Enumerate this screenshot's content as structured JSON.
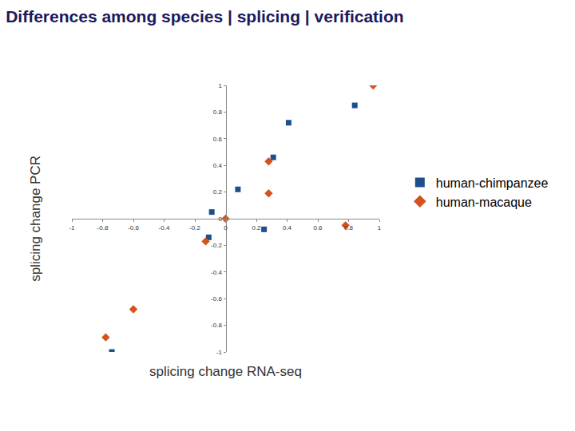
{
  "chart_data": {
    "type": "scatter",
    "title": "Differences among species | splicing | verification",
    "x_label": "splicing change RNA-seq",
    "y_label": "splicing change PCR",
    "xlim": [
      -1,
      1
    ],
    "ylim": [
      -1,
      1
    ],
    "xticks": [
      -1,
      -0.8,
      -0.6,
      -0.4,
      -0.2,
      0,
      0.2,
      0.4,
      0.6,
      0.8,
      1
    ],
    "yticks": [
      -1,
      -0.8,
      -0.6,
      -0.4,
      -0.2,
      0,
      0.2,
      0.4,
      0.6,
      0.8,
      1
    ],
    "grid": false,
    "legend": "right",
    "series": [
      {
        "name": "human-chimpanzee",
        "color": "#1f4e8c",
        "marker": "square",
        "x": [
          0.84,
          0.41,
          0.31,
          0.08,
          -0.09,
          -0.11,
          0.25,
          -0.74
        ],
        "values": [
          0.85,
          0.72,
          0.46,
          0.22,
          0.05,
          -0.14,
          -0.08,
          -1
        ]
      },
      {
        "name": "human-macaque",
        "color": "#d4521b",
        "marker": "diamond",
        "x": [
          0.96,
          0.28,
          0.28,
          0,
          -0.13,
          0.78,
          -0.6,
          -0.78
        ],
        "values": [
          1,
          0.43,
          0.19,
          0,
          -0.17,
          -0.05,
          -0.68,
          -0.89
        ]
      }
    ]
  }
}
